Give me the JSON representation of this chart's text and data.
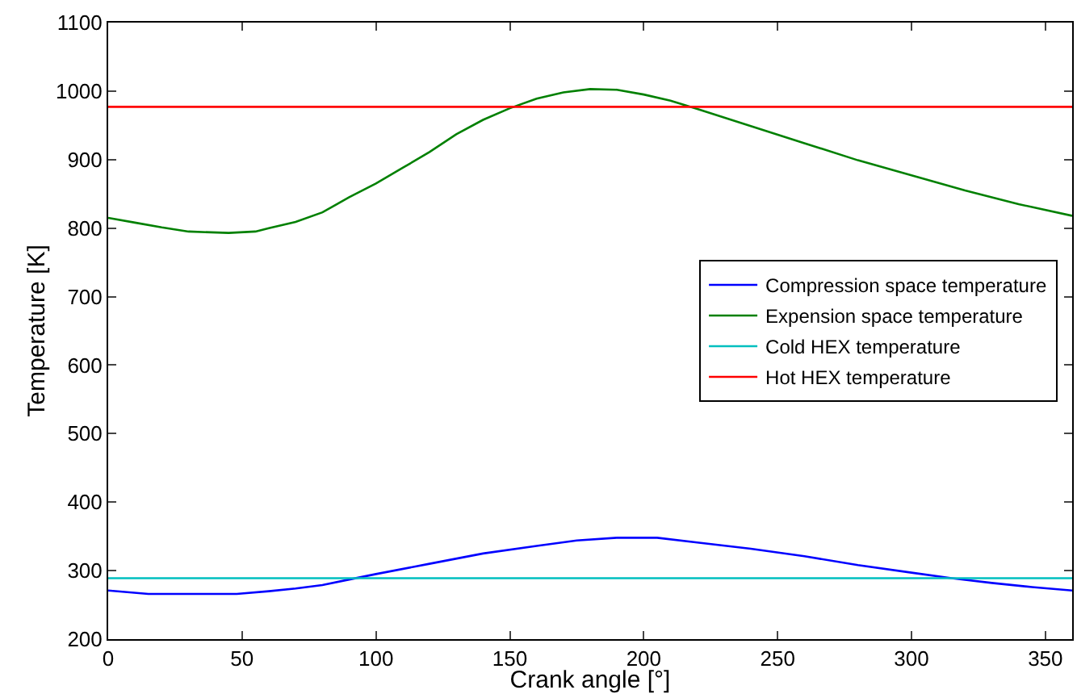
{
  "chart_data": {
    "type": "line",
    "xlabel": "Crank angle [°]",
    "ylabel": "Temperature [K]",
    "xlim": [
      0,
      360
    ],
    "xticks": [
      0,
      50,
      100,
      150,
      200,
      250,
      300,
      350
    ],
    "ylim": [
      200,
      1100
    ],
    "yticks": [
      200,
      300,
      400,
      500,
      600,
      700,
      800,
      900,
      1000,
      1100
    ],
    "legend": "right",
    "marker": "none",
    "line_style": "solid",
    "series": [
      {
        "name": "Compression space temperature",
        "color": "#0000ff",
        "x": [
          0,
          15,
          48,
          60,
          70,
          80,
          90,
          100,
          120,
          140,
          160,
          175,
          190,
          205,
          220,
          240,
          260,
          280,
          300,
          315,
          330,
          345,
          360
        ],
        "values": [
          271,
          266,
          266,
          270,
          274,
          279,
          287,
          295,
          310,
          325,
          336,
          344,
          348,
          348,
          341,
          332,
          321,
          308,
          297,
          289,
          282,
          276,
          271
        ]
      },
      {
        "name": "Expension space temperature",
        "color": "#008000",
        "x": [
          0,
          10,
          20,
          30,
          45,
          55,
          60,
          70,
          80,
          90,
          100,
          110,
          120,
          130,
          140,
          150,
          160,
          170,
          180,
          190,
          200,
          210,
          220,
          240,
          260,
          280,
          300,
          320,
          340,
          360
        ],
        "values": [
          815,
          808,
          801,
          795,
          793,
          795,
          800,
          809,
          823,
          845,
          865,
          888,
          911,
          937,
          958,
          975,
          989,
          998,
          1003,
          1002,
          995,
          986,
          974,
          949,
          924,
          899,
          877,
          855,
          835,
          818
        ]
      },
      {
        "name": "Cold HEX temperature",
        "color": "#00bfbf",
        "x": [
          0,
          360
        ],
        "values": [
          289,
          289
        ]
      },
      {
        "name": "Hot HEX temperature",
        "color": "#ff0000",
        "x": [
          0,
          360
        ],
        "values": [
          977,
          977
        ]
      }
    ]
  }
}
